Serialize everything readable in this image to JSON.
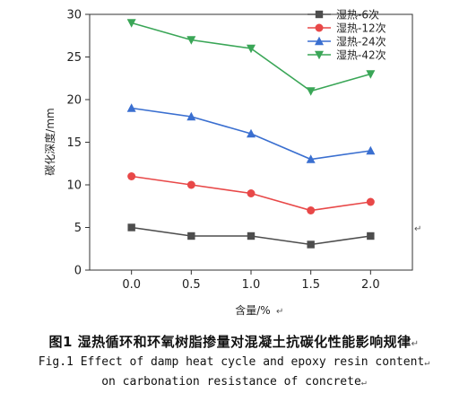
{
  "chart_data": {
    "type": "line",
    "xlabel": "含量/%",
    "ylabel": "碳化深度/mm",
    "xlim": [
      -0.35,
      2.35
    ],
    "ylim": [
      0,
      30
    ],
    "x": [
      0.0,
      0.5,
      1.0,
      1.5,
      2.0
    ],
    "xticks": [
      "0.0",
      "0.5",
      "1.0",
      "1.5",
      "2.0"
    ],
    "yticks": [
      "0",
      "5",
      "10",
      "15",
      "20",
      "25",
      "30"
    ],
    "legend_position": "top-right",
    "series": [
      {
        "name": "湿热-6次",
        "values": [
          5,
          4,
          4,
          3,
          4
        ],
        "color": "#4d4d4d",
        "marker": "square"
      },
      {
        "name": "湿热-12次",
        "values": [
          11,
          10,
          9,
          7,
          8
        ],
        "color": "#e84848",
        "marker": "circle"
      },
      {
        "name": "湿热-24次",
        "values": [
          19,
          18,
          16,
          13,
          14
        ],
        "color": "#3a6fd0",
        "marker": "triangle-up"
      },
      {
        "name": "湿热-42次",
        "values": [
          29,
          27,
          26,
          21,
          23
        ],
        "color": "#3aa657",
        "marker": "triangle-down"
      }
    ]
  },
  "caption": {
    "cn": "图1  湿热循环和环氧树脂掺量对混凝土抗碳化性能影响规律",
    "en_line1": "Fig.1  Effect of damp heat cycle and epoxy resin content",
    "en_line2": "on carbonation resistance of concrete"
  },
  "para_mark": "↵"
}
